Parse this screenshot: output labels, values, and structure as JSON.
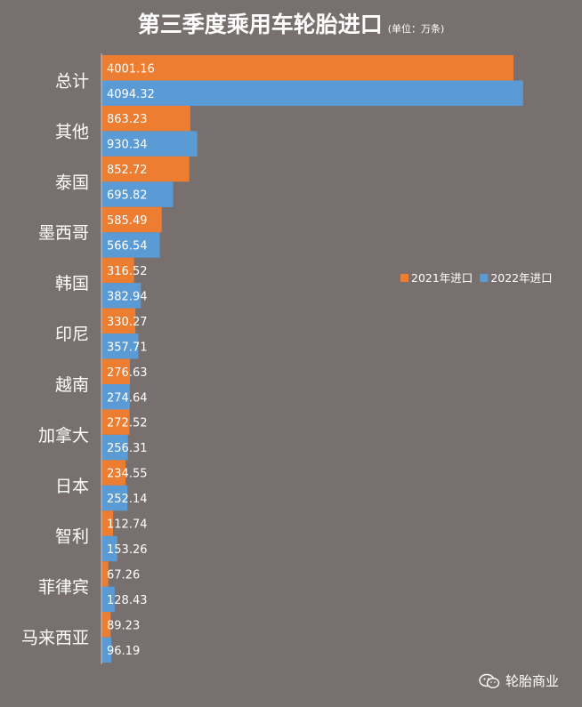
{
  "chart_data": {
    "type": "bar",
    "orientation": "horizontal",
    "title": "第三季度乘用车轮胎进口",
    "subtitle": "(单位：万条)",
    "categories": [
      "总计",
      "其他",
      "泰国",
      "墨西哥",
      "韩国",
      "印尼",
      "越南",
      "加拿大",
      "日本",
      "智利",
      "菲律宾",
      "马来西亚"
    ],
    "series": [
      {
        "name": "2021年进口",
        "color": "#ed7d31",
        "values": [
          4001.16,
          863.23,
          852.72,
          585.49,
          316.52,
          330.27,
          276.63,
          272.52,
          234.55,
          112.74,
          67.26,
          89.23
        ]
      },
      {
        "name": "2022年进口",
        "color": "#5b9bd5",
        "values": [
          4094.32,
          930.34,
          695.82,
          566.54,
          382.94,
          357.71,
          274.64,
          256.31,
          252.14,
          153.26,
          128.43,
          96.19
        ]
      }
    ],
    "xlim": [
      0,
      4200
    ],
    "grid": false,
    "legend_position": "right"
  },
  "watermark": {
    "text": "轮胎商业",
    "icon": "wechat-icon"
  },
  "colors": {
    "background": "#77706f",
    "axis": "#c8c4c3"
  }
}
